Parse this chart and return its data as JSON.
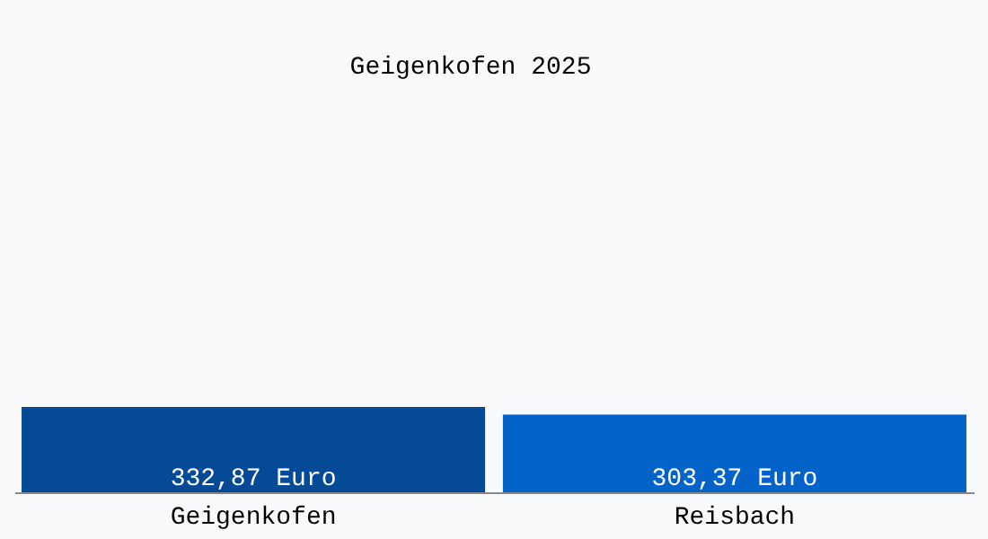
{
  "chart_data": {
    "type": "bar",
    "title": "Geigenkofen 2025",
    "categories": [
      "Geigenkofen",
      "Reisbach"
    ],
    "values": [
      332.87,
      303.37
    ],
    "colors": [
      "#044a97",
      "#0363c9"
    ],
    "value_labels": [
      "332,87 Euro",
      "303,37 Euro"
    ],
    "ylim": [
      0,
      1920
    ]
  }
}
